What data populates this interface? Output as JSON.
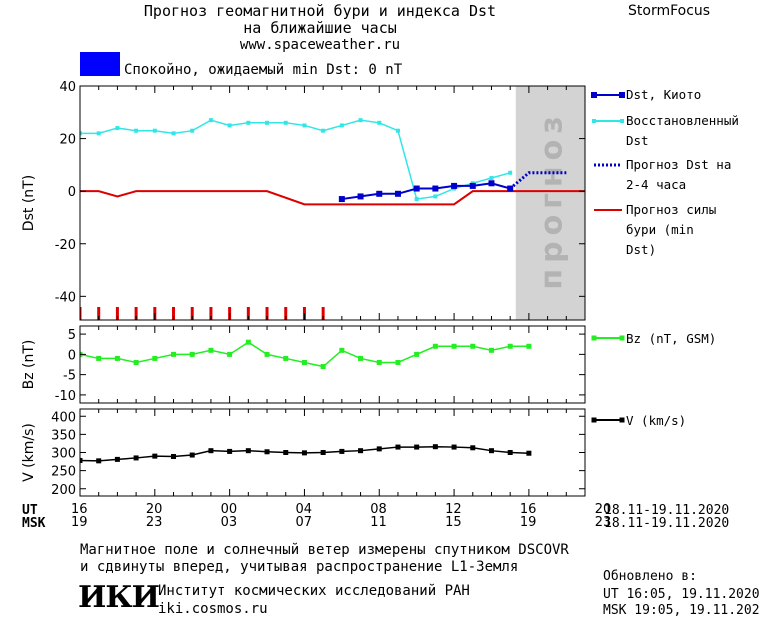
{
  "header": {
    "title_line1": "Прогноз геомагнитной бури и индекса Dst",
    "title_line2": "на ближайшие часы",
    "site": "www.spaceweather.ru",
    "brand": "StormFocus"
  },
  "status": {
    "text": "Спокойно, ожидаемый min Dst: 0 nT",
    "color": "#0000ff"
  },
  "colors": {
    "dst_kyoto": "#0000cc",
    "dst_restored": "#33e6e6",
    "dst_forecast": "#0000cc",
    "storm_forecast": "#dd0000",
    "bz": "#22ee22",
    "v": "#000000",
    "forecast_band": "#d3d3d3",
    "forecast_label": "#b3b3b3"
  },
  "forecast_label": "прогноз",
  "chart_data": [
    {
      "type": "line",
      "name": "dst",
      "ylabel": "Dst (nT)",
      "ylim": [
        -49,
        40
      ],
      "yticks": [
        40,
        20,
        0,
        -20,
        -40
      ],
      "xlim": [
        0,
        27
      ],
      "forecast_band": [
        23.3,
        27
      ],
      "series": [
        {
          "name": "Dst, Киото",
          "x": [
            14,
            15,
            16,
            17,
            18,
            19,
            20,
            21,
            22,
            23
          ],
          "y": [
            -3,
            -2,
            -1,
            -1,
            1,
            1,
            2,
            2,
            3,
            1
          ]
        },
        {
          "name": "Восстановленный Dst",
          "x": [
            0,
            1,
            2,
            3,
            4,
            5,
            6,
            7,
            8,
            9,
            10,
            11,
            12,
            13,
            14,
            15,
            16,
            17,
            18,
            19,
            20,
            21,
            22,
            23
          ],
          "y": [
            22,
            22,
            24,
            23,
            23,
            22,
            23,
            27,
            25,
            26,
            26,
            26,
            25,
            23,
            25,
            27,
            26,
            23,
            -3,
            -2,
            1,
            3,
            5,
            7
          ]
        },
        {
          "name": "Прогноз Dst на 2-4 часа",
          "x": [
            23,
            24,
            25,
            26
          ],
          "y": [
            1,
            7,
            7,
            7
          ]
        },
        {
          "name": "Прогноз силы бури (min Dst)",
          "x": [
            -1,
            1,
            2,
            3,
            5,
            10,
            12,
            20,
            21,
            28
          ],
          "y": [
            0,
            0,
            -2,
            0,
            0,
            0,
            -5,
            -5,
            0,
            0
          ]
        }
      ],
      "alert_markers": 14,
      "legend": "right"
    },
    {
      "type": "line",
      "name": "bz",
      "ylabel": "Bz (nT)",
      "ylim": [
        -12,
        7
      ],
      "yticks": [
        5,
        0,
        -5,
        -10
      ],
      "xlim": [
        0,
        27
      ],
      "series": [
        {
          "name": "Bz (nT, GSM)",
          "x": [
            0,
            1,
            2,
            3,
            4,
            5,
            6,
            7,
            8,
            9,
            10,
            11,
            12,
            13,
            14,
            15,
            16,
            17,
            18,
            19,
            20,
            21,
            22,
            23,
            24
          ],
          "y": [
            0,
            -1,
            -1,
            -2,
            -1,
            0,
            0,
            1,
            0,
            3,
            0,
            -1,
            -2,
            -3,
            1,
            -1,
            -2,
            -2,
            0,
            2,
            2,
            2,
            1,
            2,
            2
          ]
        }
      ],
      "legend": "right"
    },
    {
      "type": "line",
      "name": "v",
      "ylabel": "V (km/s)",
      "ylim": [
        180,
        420
      ],
      "yticks": [
        400,
        350,
        300,
        250,
        200
      ],
      "xlim": [
        0,
        27
      ],
      "series": [
        {
          "name": "V (km/s)",
          "x": [
            0,
            1,
            2,
            3,
            4,
            5,
            6,
            7,
            8,
            9,
            10,
            11,
            12,
            13,
            14,
            15,
            16,
            17,
            18,
            19,
            20,
            21,
            22,
            23,
            24
          ],
          "y": [
            278,
            277,
            281,
            285,
            290,
            289,
            293,
            305,
            303,
            305,
            302,
            300,
            299,
            300,
            303,
            305,
            310,
            315,
            315,
            316,
            315,
            313,
            305,
            300,
            298
          ]
        }
      ],
      "legend": "right"
    }
  ],
  "time_axis": {
    "ut_label": "UT",
    "msk_label": "MSK",
    "ut_ticks": [
      "16",
      "20",
      "00",
      "04",
      "08",
      "12",
      "16",
      "20"
    ],
    "msk_ticks": [
      "19",
      "23",
      "03",
      "07",
      "11",
      "15",
      "19",
      "23"
    ],
    "ut_range": "18.11-19.11.2020",
    "msk_range": "18.11-19.11.2020"
  },
  "footer": {
    "note_line1": "Магнитное поле и солнечный ветер измерены спутником DSCOVR",
    "note_line2": "и сдвинуты вперед, учитывая распространение L1-Земля",
    "updated_label": "Обновлено в:",
    "updated_ut": "UT  16:05, 19.11.2020",
    "updated_msk": "MSK 19:05, 19.11.2020",
    "logo_text": "ИКИ",
    "institute": "Институт космических исследований РАН",
    "institute_site": "iki.cosmos.ru"
  }
}
